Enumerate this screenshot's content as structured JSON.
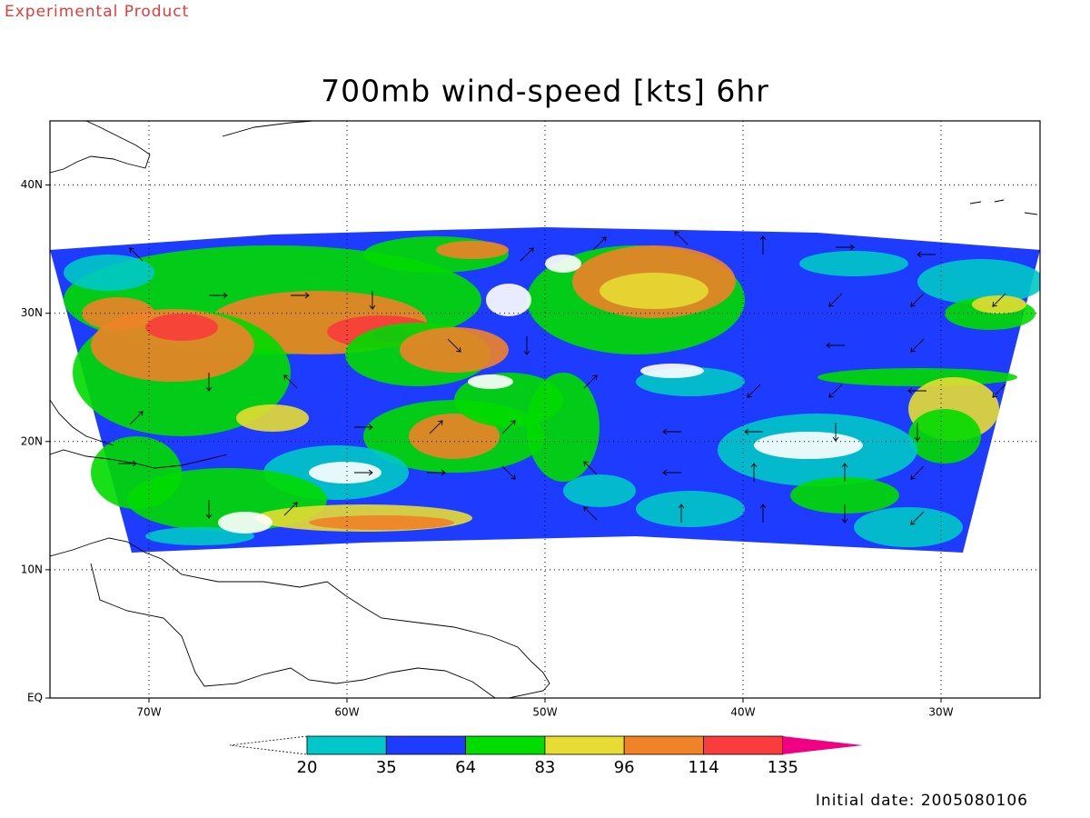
{
  "header": {
    "note": "Experimental Product",
    "title": "700mb wind-speed [kts] 6hr"
  },
  "map": {
    "lon_range": [
      -75,
      -25
    ],
    "lat_range": [
      0,
      45
    ],
    "lon_ticks": [
      {
        "value": -70,
        "label": "70W"
      },
      {
        "value": -60,
        "label": "60W"
      },
      {
        "value": -50,
        "label": "50W"
      },
      {
        "value": -40,
        "label": "40W"
      },
      {
        "value": -30,
        "label": "30W"
      }
    ],
    "lat_ticks": [
      {
        "value": 0,
        "label": "EQ"
      },
      {
        "value": 10,
        "label": "10N"
      },
      {
        "value": 20,
        "label": "20N"
      },
      {
        "value": 30,
        "label": "30N"
      },
      {
        "value": 40,
        "label": "40N"
      }
    ]
  },
  "colorbar": {
    "levels": [
      20,
      35,
      64,
      83,
      96,
      114,
      135
    ],
    "colors": [
      "#ffffff",
      "#00c8c8",
      "#1e3cff",
      "#00dc00",
      "#e6dc32",
      "#f08228",
      "#fa3c3c",
      "#f00082"
    ]
  },
  "footer": {
    "initial_date": "Initial date: 2005080106"
  }
}
